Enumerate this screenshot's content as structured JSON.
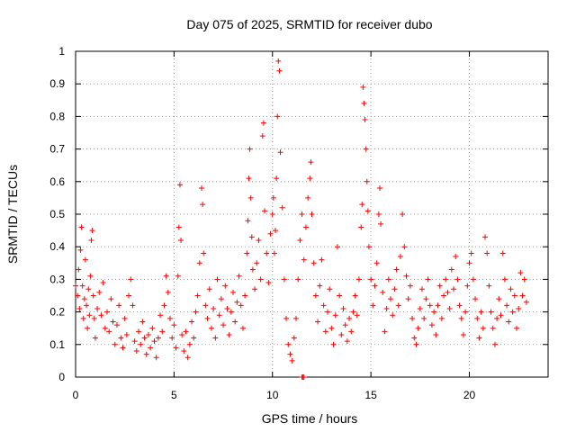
{
  "chart_data": {
    "type": "scatter",
    "title": "Day 075 of 2025, SRMTID for receiver dubo",
    "xlabel": "GPS time / hours",
    "ylabel": "SRMTID / TECUs",
    "xlim": [
      0,
      24
    ],
    "ylim": [
      0,
      1
    ],
    "grid": true,
    "marker": "plus",
    "color": "#ff0000",
    "x_ticks": [
      0,
      5,
      10,
      15,
      20
    ],
    "x_tick_labels": [
      "0",
      "5",
      "10",
      "15",
      "20"
    ],
    "y_ticks": [
      0,
      0.1,
      0.2,
      0.3,
      0.4,
      0.5,
      0.6,
      0.7,
      0.8,
      0.9,
      1
    ],
    "y_tick_labels": [
      "0",
      "0.1",
      "0.2",
      "0.3",
      "0.4",
      "0.5",
      "0.6",
      "0.7",
      "0.8",
      "0.9",
      "1"
    ],
    "series": [
      {
        "name": "SRMTID",
        "points": [
          [
            0.0,
            0.28
          ],
          [
            0.1,
            0.25
          ],
          [
            0.15,
            0.33
          ],
          [
            0.2,
            0.21
          ],
          [
            0.25,
            0.39
          ],
          [
            0.3,
            0.46
          ],
          [
            0.35,
            0.28
          ],
          [
            0.4,
            0.18
          ],
          [
            0.45,
            0.24
          ],
          [
            0.5,
            0.36
          ],
          [
            0.55,
            0.22
          ],
          [
            0.6,
            0.15
          ],
          [
            0.65,
            0.27
          ],
          [
            0.7,
            0.19
          ],
          [
            0.75,
            0.31
          ],
          [
            0.8,
            0.42
          ],
          [
            0.85,
            0.45
          ],
          [
            0.9,
            0.25
          ],
          [
            0.95,
            0.18
          ],
          [
            1.0,
            0.12
          ],
          [
            1.1,
            0.21
          ],
          [
            1.2,
            0.26
          ],
          [
            1.3,
            0.19
          ],
          [
            1.4,
            0.29
          ],
          [
            1.5,
            0.15
          ],
          [
            1.6,
            0.2
          ],
          [
            1.7,
            0.14
          ],
          [
            1.8,
            0.24
          ],
          [
            1.9,
            0.17
          ],
          [
            2.0,
            0.1
          ],
          [
            2.1,
            0.16
          ],
          [
            2.2,
            0.22
          ],
          [
            2.3,
            0.12
          ],
          [
            2.4,
            0.09
          ],
          [
            2.5,
            0.18
          ],
          [
            2.6,
            0.13
          ],
          [
            2.7,
            0.25
          ],
          [
            2.8,
            0.3
          ],
          [
            2.9,
            0.22
          ],
          [
            3.0,
            0.11
          ],
          [
            3.1,
            0.08
          ],
          [
            3.2,
            0.14
          ],
          [
            3.3,
            0.1
          ],
          [
            3.4,
            0.17
          ],
          [
            3.5,
            0.12
          ],
          [
            3.6,
            0.07
          ],
          [
            3.7,
            0.13
          ],
          [
            3.8,
            0.09
          ],
          [
            3.9,
            0.15
          ],
          [
            4.0,
            0.11
          ],
          [
            4.1,
            0.06
          ],
          [
            4.2,
            0.12
          ],
          [
            4.3,
            0.19
          ],
          [
            4.4,
            0.14
          ],
          [
            4.5,
            0.22
          ],
          [
            4.6,
            0.31
          ],
          [
            4.7,
            0.26
          ],
          [
            4.8,
            0.18
          ],
          [
            4.9,
            0.12
          ],
          [
            5.0,
            0.16
          ],
          [
            5.1,
            0.09
          ],
          [
            5.2,
            0.31
          ],
          [
            5.25,
            0.46
          ],
          [
            5.3,
            0.59
          ],
          [
            5.35,
            0.42
          ],
          [
            5.4,
            0.13
          ],
          [
            5.5,
            0.08
          ],
          [
            5.6,
            0.14
          ],
          [
            5.7,
            0.06
          ],
          [
            5.8,
            0.1
          ],
          [
            5.9,
            0.17
          ],
          [
            6.0,
            0.12
          ],
          [
            6.1,
            0.2
          ],
          [
            6.2,
            0.25
          ],
          [
            6.3,
            0.35
          ],
          [
            6.4,
            0.58
          ],
          [
            6.45,
            0.53
          ],
          [
            6.5,
            0.38
          ],
          [
            6.6,
            0.22
          ],
          [
            6.7,
            0.18
          ],
          [
            6.8,
            0.27
          ],
          [
            6.9,
            0.15
          ],
          [
            7.0,
            0.21
          ],
          [
            7.1,
            0.12
          ],
          [
            7.2,
            0.3
          ],
          [
            7.3,
            0.19
          ],
          [
            7.4,
            0.24
          ],
          [
            7.5,
            0.16
          ],
          [
            7.6,
            0.28
          ],
          [
            7.7,
            0.21
          ],
          [
            7.8,
            0.13
          ],
          [
            7.9,
            0.2
          ],
          [
            8.0,
            0.26
          ],
          [
            8.1,
            0.17
          ],
          [
            8.2,
            0.23
          ],
          [
            8.3,
            0.31
          ],
          [
            8.4,
            0.22
          ],
          [
            8.5,
            0.15
          ],
          [
            8.6,
            0.25
          ],
          [
            8.7,
            0.38
          ],
          [
            8.75,
            0.48
          ],
          [
            8.8,
            0.61
          ],
          [
            8.85,
            0.7
          ],
          [
            8.9,
            0.55
          ],
          [
            8.95,
            0.43
          ],
          [
            9.0,
            0.33
          ],
          [
            9.1,
            0.27
          ],
          [
            9.2,
            0.35
          ],
          [
            9.3,
            0.42
          ],
          [
            9.4,
            0.3
          ],
          [
            9.5,
            0.74
          ],
          [
            9.55,
            0.78
          ],
          [
            9.6,
            0.51
          ],
          [
            9.7,
            0.38
          ],
          [
            9.8,
            0.29
          ],
          [
            9.9,
            0.44
          ],
          [
            10.0,
            0.5
          ],
          [
            10.05,
            0.55
          ],
          [
            10.1,
            0.38
          ],
          [
            10.15,
            0.45
          ],
          [
            10.2,
            0.61
          ],
          [
            10.25,
            0.8
          ],
          [
            10.3,
            0.97
          ],
          [
            10.35,
            0.94
          ],
          [
            10.4,
            0.69
          ],
          [
            10.5,
            0.52
          ],
          [
            10.6,
            0.3
          ],
          [
            10.7,
            0.18
          ],
          [
            10.8,
            0.1
          ],
          [
            10.9,
            0.07
          ],
          [
            11.0,
            0.05
          ],
          [
            11.1,
            0.12
          ],
          [
            11.2,
            0.18
          ],
          [
            11.3,
            0.3
          ],
          [
            11.4,
            0.42
          ],
          [
            11.5,
            0.5
          ],
          [
            11.6,
            0.36
          ],
          [
            11.7,
            0.46
          ],
          [
            11.8,
            0.55
          ],
          [
            11.9,
            0.61
          ],
          [
            11.95,
            0.66
          ],
          [
            12.0,
            0.5
          ],
          [
            12.1,
            0.35
          ],
          [
            12.2,
            0.25
          ],
          [
            12.3,
            0.17
          ],
          [
            12.4,
            0.28
          ],
          [
            12.5,
            0.36
          ],
          [
            12.6,
            0.22
          ],
          [
            12.7,
            0.14
          ],
          [
            12.8,
            0.2
          ],
          [
            12.9,
            0.27
          ],
          [
            13.0,
            0.15
          ],
          [
            13.1,
            0.1
          ],
          [
            13.2,
            0.19
          ],
          [
            13.3,
            0.4
          ],
          [
            13.4,
            0.25
          ],
          [
            13.5,
            0.13
          ],
          [
            13.6,
            0.21
          ],
          [
            13.7,
            0.16
          ],
          [
            13.8,
            0.11
          ],
          [
            13.9,
            0.18
          ],
          [
            14.0,
            0.14
          ],
          [
            14.1,
            0.2
          ],
          [
            14.2,
            0.25
          ],
          [
            14.3,
            0.19
          ],
          [
            14.4,
            0.3
          ],
          [
            14.5,
            0.46
          ],
          [
            14.55,
            0.53
          ],
          [
            14.6,
            0.89
          ],
          [
            14.65,
            0.84
          ],
          [
            14.7,
            0.79
          ],
          [
            14.75,
            0.7
          ],
          [
            14.8,
            0.6
          ],
          [
            14.85,
            0.51
          ],
          [
            14.9,
            0.4
          ],
          [
            15.0,
            0.3
          ],
          [
            15.1,
            0.22
          ],
          [
            15.2,
            0.28
          ],
          [
            15.3,
            0.35
          ],
          [
            15.4,
            0.5
          ],
          [
            15.45,
            0.58
          ],
          [
            15.5,
            0.47
          ],
          [
            15.6,
            0.26
          ],
          [
            15.7,
            0.14
          ],
          [
            15.8,
            0.21
          ],
          [
            15.9,
            0.3
          ],
          [
            16.0,
            0.24
          ],
          [
            16.1,
            0.19
          ],
          [
            16.2,
            0.27
          ],
          [
            16.3,
            0.33
          ],
          [
            16.4,
            0.22
          ],
          [
            16.5,
            0.37
          ],
          [
            16.6,
            0.5
          ],
          [
            16.7,
            0.4
          ],
          [
            16.8,
            0.31
          ],
          [
            16.9,
            0.24
          ],
          [
            17.0,
            0.28
          ],
          [
            17.1,
            0.18
          ],
          [
            17.2,
            0.12
          ],
          [
            17.3,
            0.1
          ],
          [
            17.4,
            0.15
          ],
          [
            17.5,
            0.21
          ],
          [
            17.6,
            0.27
          ],
          [
            17.7,
            0.18
          ],
          [
            17.8,
            0.24
          ],
          [
            17.9,
            0.3
          ],
          [
            18.0,
            0.22
          ],
          [
            18.1,
            0.16
          ],
          [
            18.2,
            0.2
          ],
          [
            18.3,
            0.13
          ],
          [
            18.4,
            0.22
          ],
          [
            18.5,
            0.28
          ],
          [
            18.6,
            0.18
          ],
          [
            18.7,
            0.25
          ],
          [
            18.8,
            0.3
          ],
          [
            18.9,
            0.26
          ],
          [
            19.0,
            0.21
          ],
          [
            19.1,
            0.33
          ],
          [
            19.2,
            0.27
          ],
          [
            19.3,
            0.37
          ],
          [
            19.4,
            0.3
          ],
          [
            19.5,
            0.22
          ],
          [
            19.6,
            0.18
          ],
          [
            19.7,
            0.13
          ],
          [
            19.8,
            0.2
          ],
          [
            19.9,
            0.28
          ],
          [
            20.0,
            0.35
          ],
          [
            20.1,
            0.38
          ],
          [
            20.2,
            0.3
          ],
          [
            20.3,
            0.24
          ],
          [
            20.4,
            0.18
          ],
          [
            20.5,
            0.12
          ],
          [
            20.6,
            0.2
          ],
          [
            20.7,
            0.15
          ],
          [
            20.8,
            0.43
          ],
          [
            20.9,
            0.38
          ],
          [
            21.0,
            0.28
          ],
          [
            21.1,
            0.2
          ],
          [
            21.2,
            0.15
          ],
          [
            21.3,
            0.1
          ],
          [
            21.4,
            0.18
          ],
          [
            21.5,
            0.24
          ],
          [
            21.6,
            0.19
          ],
          [
            21.7,
            0.38
          ],
          [
            21.8,
            0.3
          ],
          [
            21.9,
            0.22
          ],
          [
            22.0,
            0.17
          ],
          [
            22.1,
            0.27
          ],
          [
            22.2,
            0.2
          ],
          [
            22.3,
            0.25
          ],
          [
            22.4,
            0.15
          ],
          [
            22.5,
            0.21
          ],
          [
            22.6,
            0.32
          ],
          [
            22.7,
            0.25
          ],
          [
            22.8,
            0.3
          ],
          [
            22.9,
            0.23
          ],
          [
            11.5,
            0.0
          ],
          [
            11.55,
            0.0
          ],
          [
            11.6,
            0.0
          ]
        ]
      }
    ]
  }
}
